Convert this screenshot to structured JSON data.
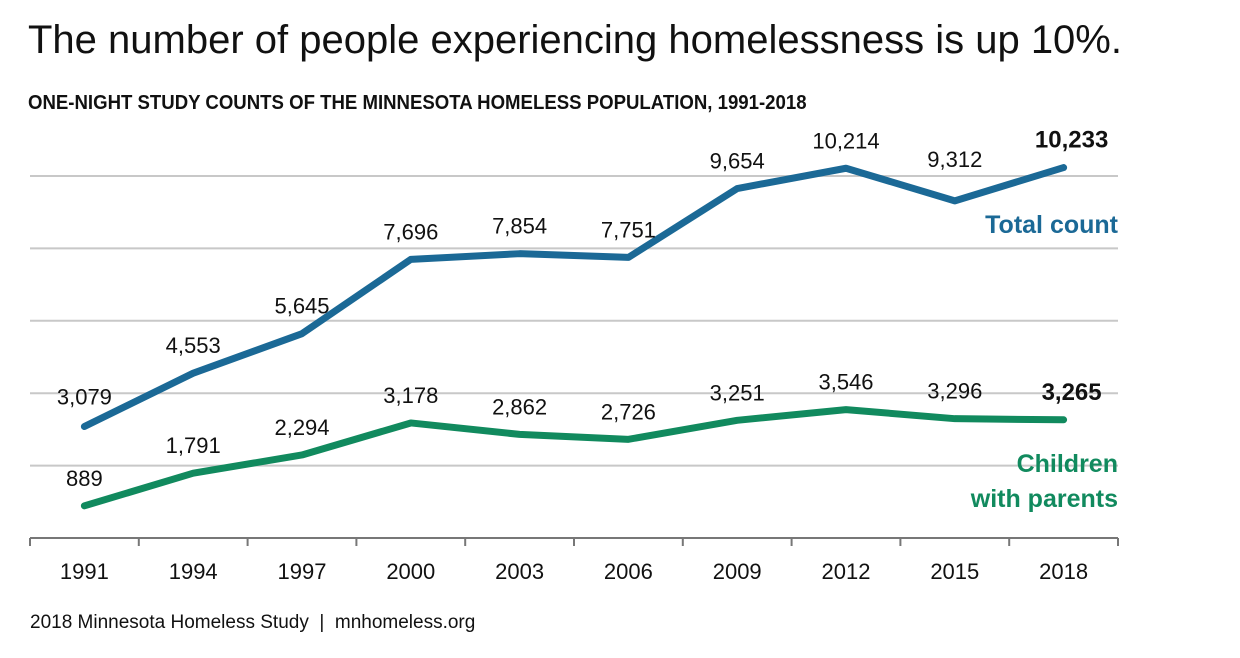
{
  "chart_data": {
    "type": "line",
    "title": "The number of people experiencing homelessness is up 10%.",
    "subtitle": "ONE-NIGHT STUDY COUNTS OF THE MINNESOTA HOMELESS POPULATION, 1991-2018",
    "source": "2018 Minnesota Homeless Study  |  mnhomeless.org",
    "categories": [
      "1991",
      "1994",
      "1997",
      "2000",
      "2003",
      "2006",
      "2009",
      "2012",
      "2015",
      "2018"
    ],
    "ylim": [
      0,
      10400
    ],
    "grid": true,
    "gridline_values": [
      2000,
      4000,
      6000,
      8000,
      10000
    ],
    "series": [
      {
        "name": "Total count",
        "color": "#1b6996",
        "values": [
          3079,
          4553,
          5645,
          7696,
          7854,
          7751,
          9654,
          10214,
          9312,
          10233
        ],
        "labels": [
          "3,079",
          "4,553",
          "5,645",
          "7,696",
          "7,854",
          "7,751",
          "9,654",
          "10,214",
          "9,312",
          "10,233"
        ]
      },
      {
        "name": "Children with parents",
        "name_lines": [
          "Children",
          "with parents"
        ],
        "color": "#118a5e",
        "values": [
          889,
          1791,
          2294,
          3178,
          2862,
          2726,
          3251,
          3546,
          3296,
          3265
        ],
        "labels": [
          "889",
          "1,791",
          "2,294",
          "3,178",
          "2,862",
          "2,726",
          "3,251",
          "3,546",
          "3,296",
          "3,265"
        ]
      }
    ]
  }
}
